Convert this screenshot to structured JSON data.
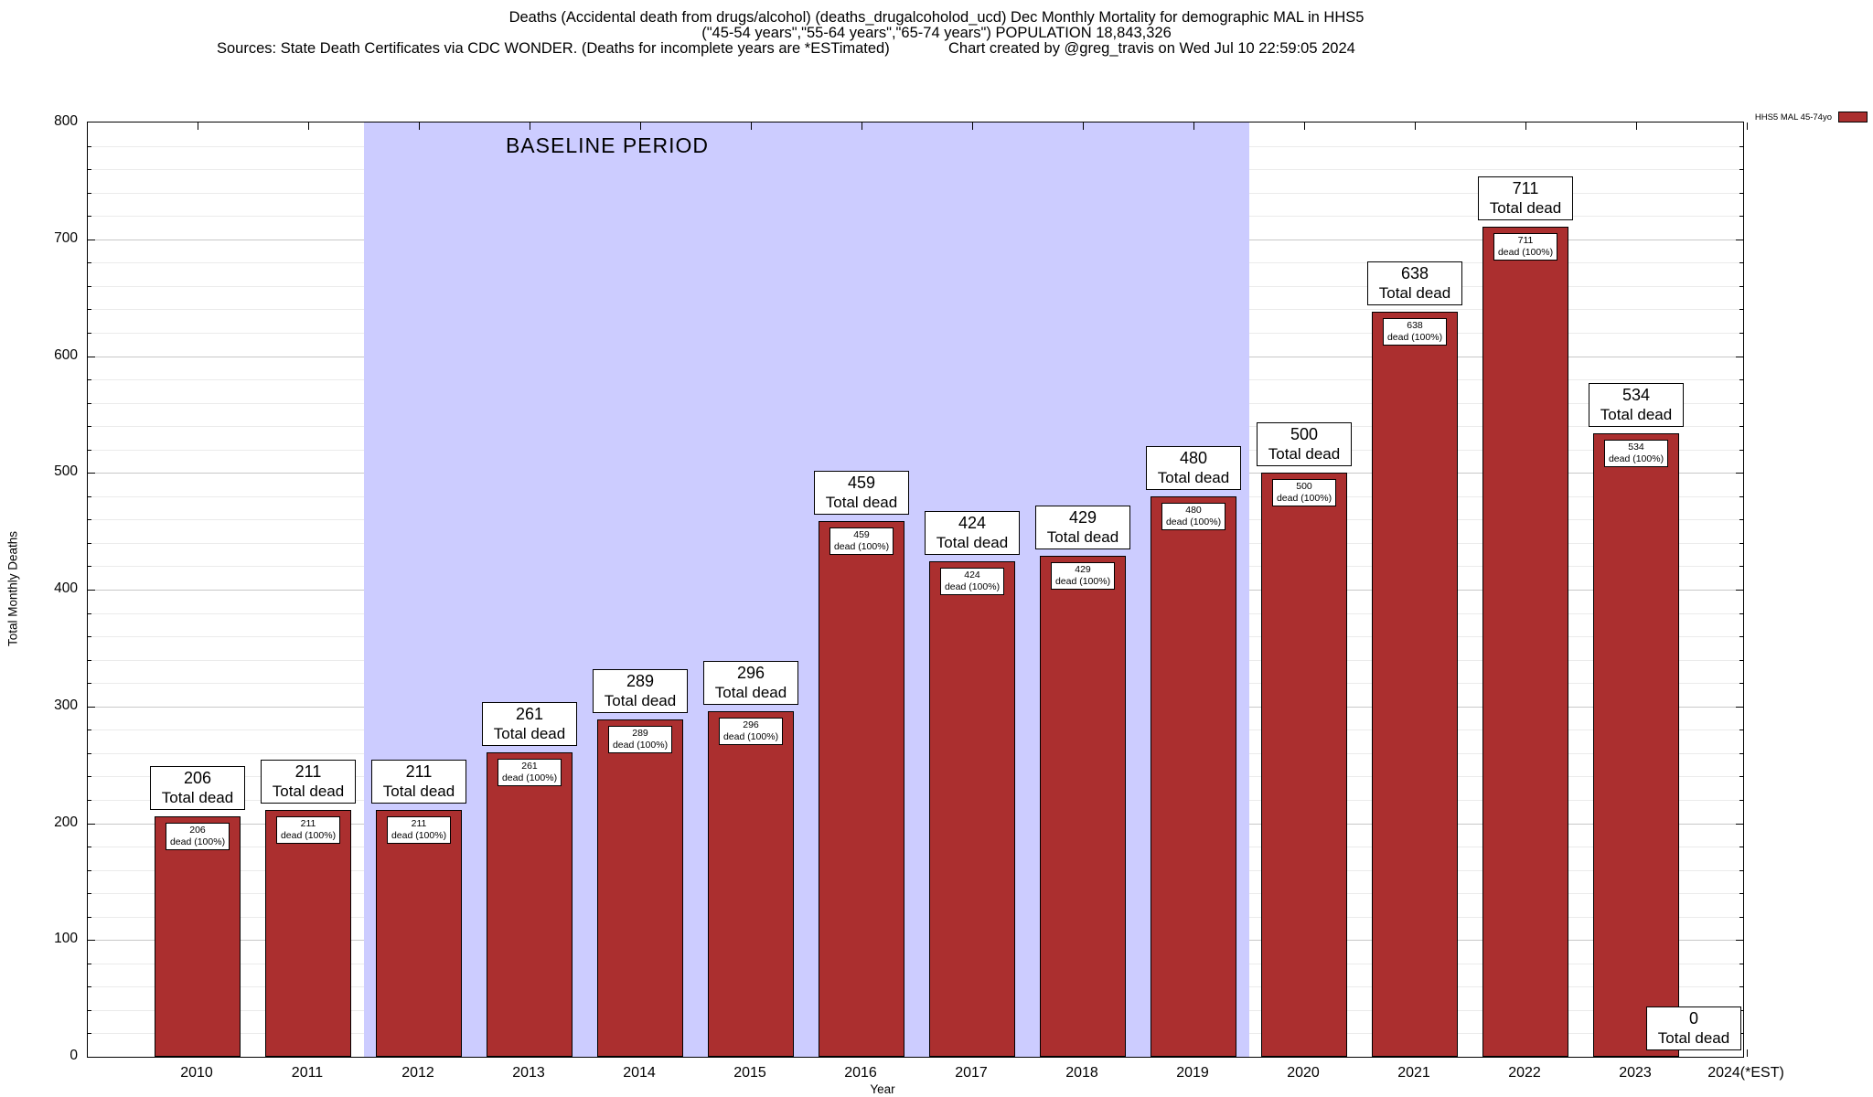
{
  "chart_data": {
    "type": "bar",
    "title": "Deaths (Accidental death from drugs/alcohol) (deaths_drugalcoholod_ucd) Dec Monthly Mortality for demographic MAL in HHS5",
    "subtitle": "(\"45-54 years\",\"55-64 years\",\"65-74 years\") POPULATION 18,843,326",
    "source_note": "Sources: State Death Certificates via CDC WONDER. (Deaths for incomplete years are *ESTimated)",
    "credit": "Chart created by @greg_travis on Wed Jul 10 22:59:05 2024",
    "xlabel": "Year",
    "ylabel": "Total Monthly Deaths",
    "ylim": [
      0,
      800
    ],
    "ytick_interval": 100,
    "ytick_minor_interval": 20,
    "grid": true,
    "legend": {
      "label": "HHS5 MAL 45-74yo",
      "position": "top-right"
    },
    "categories": [
      "2010",
      "2011",
      "2012",
      "2013",
      "2014",
      "2015",
      "2016",
      "2017",
      "2018",
      "2019",
      "2020",
      "2021",
      "2022",
      "2023",
      "2024(*EST)"
    ],
    "values": [
      206,
      211,
      211,
      261,
      289,
      296,
      459,
      424,
      429,
      480,
      500,
      638,
      711,
      534,
      0
    ],
    "bar_color": "#ab2f2f",
    "bar_border_color": "#000000",
    "bar_total_label": "Total dead",
    "bar_inner_label": "dead (100%)",
    "baseline_period": {
      "label": "BASELINE PERIOD",
      "from_category": "2012",
      "to_category": "2019",
      "color": "#ccccff"
    }
  }
}
